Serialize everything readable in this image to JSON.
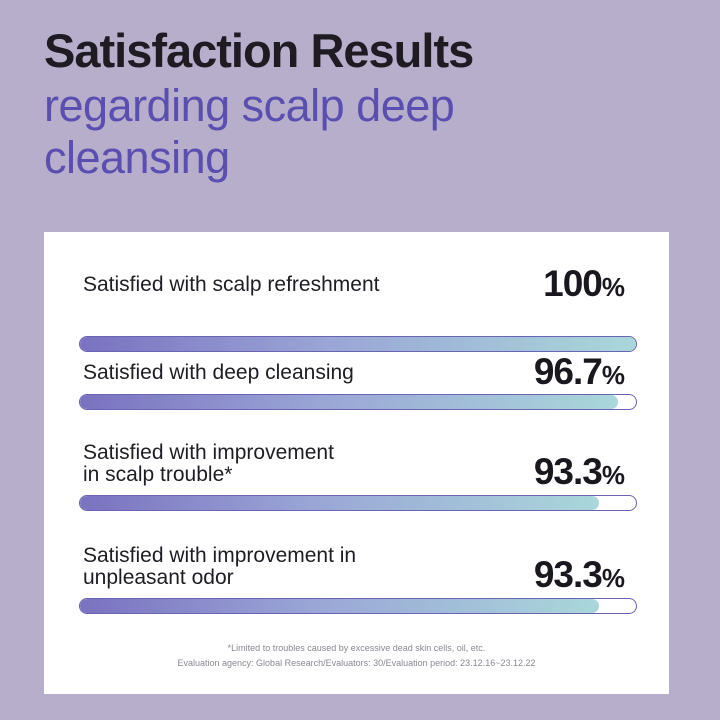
{
  "title": {
    "main": "Satisfaction Results",
    "sub": "regarding scalp deep cleansing"
  },
  "chart_data": {
    "type": "bar",
    "orientation": "horizontal",
    "categories": [
      "Satisfied with scalp refreshment",
      "Satisfied with deep cleansing",
      "Satisfied with improvement in scalp trouble*",
      "Satisfied with improvement in unpleasant odor"
    ],
    "values": [
      100,
      96.7,
      93.3,
      93.3
    ],
    "value_labels": [
      "100",
      "96.7",
      "93.3",
      "93.3"
    ],
    "unit": "%",
    "xlim": [
      0,
      100
    ],
    "title": "Satisfaction Results regarding scalp deep cleansing",
    "xlabel": "",
    "ylabel": ""
  },
  "items": [
    {
      "label_lines": [
        "Satisfied with scalp refreshment"
      ],
      "value": "100",
      "unit": "%"
    },
    {
      "label_lines": [
        "Satisfied with deep cleansing"
      ],
      "value": "96.7",
      "unit": "%"
    },
    {
      "label_lines": [
        "Satisfied with improvement",
        "in scalp trouble*"
      ],
      "value": "93.3",
      "unit": "%"
    },
    {
      "label_lines": [
        "Satisfied with improvement in",
        "unpleasant odor"
      ],
      "value": "93.3",
      "unit": "%"
    }
  ],
  "footnote": {
    "line1": "*Limited to troubles caused by excessive dead skin cells, oil, etc.",
    "line2": "Evaluation agency: Global Research/Evaluators: 30/Evaluation period: 23.12.16~23.12.22"
  },
  "colors": {
    "background": "#b7aecb",
    "title": "#1e1b22",
    "subtitle": "#5a4fb0",
    "bar_start": "#7a72c0",
    "bar_end": "#a9d7da",
    "bar_border": "#6b63b3"
  }
}
